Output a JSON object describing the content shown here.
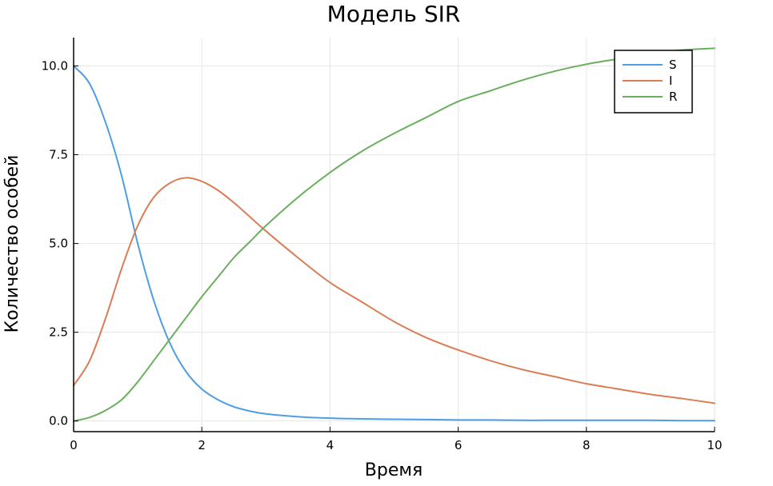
{
  "chart_data": {
    "type": "line",
    "title": "Модель SIR",
    "xlabel": "Время",
    "ylabel": "Количество особей",
    "xlim": [
      0,
      10
    ],
    "ylim": [
      -0.3,
      10.8
    ],
    "xticks": [
      0,
      2,
      4,
      6,
      8,
      10
    ],
    "xtick_labels": [
      "0",
      "2",
      "4",
      "6",
      "8",
      "10"
    ],
    "yticks": [
      0,
      2.5,
      5,
      7.5,
      10
    ],
    "ytick_labels": [
      "0.0",
      "2.5",
      "5.0",
      "7.5",
      "10.0"
    ],
    "grid": true,
    "legend": "top-right",
    "x": [
      0,
      0.25,
      0.5,
      0.75,
      1,
      1.25,
      1.5,
      1.75,
      2,
      2.25,
      2.5,
      2.75,
      3,
      3.5,
      4,
      4.5,
      5,
      5.5,
      6,
      6.5,
      7,
      7.5,
      8,
      8.5,
      9,
      9.5,
      10
    ],
    "series": [
      {
        "name": "S",
        "color": "#4f9de6",
        "values": [
          10.0,
          9.5,
          8.4,
          6.9,
          5.0,
          3.4,
          2.2,
          1.4,
          0.9,
          0.6,
          0.4,
          0.28,
          0.2,
          0.12,
          0.08,
          0.06,
          0.05,
          0.04,
          0.03,
          0.03,
          0.02,
          0.02,
          0.02,
          0.02,
          0.02,
          0.01,
          0.01
        ]
      },
      {
        "name": "I",
        "color": "#d97d56",
        "values": [
          1.0,
          1.7,
          2.9,
          4.3,
          5.5,
          6.3,
          6.7,
          6.85,
          6.75,
          6.5,
          6.15,
          5.75,
          5.35,
          4.6,
          3.9,
          3.35,
          2.8,
          2.35,
          2.0,
          1.7,
          1.45,
          1.25,
          1.05,
          0.9,
          0.75,
          0.63,
          0.5
        ]
      },
      {
        "name": "R",
        "color": "#6aaf5e",
        "values": [
          0.0,
          0.1,
          0.3,
          0.6,
          1.1,
          1.7,
          2.3,
          2.9,
          3.5,
          4.05,
          4.6,
          5.05,
          5.5,
          6.3,
          7.0,
          7.6,
          8.1,
          8.55,
          9.0,
          9.3,
          9.6,
          9.85,
          10.05,
          10.2,
          10.35,
          10.45,
          10.5
        ]
      }
    ]
  }
}
